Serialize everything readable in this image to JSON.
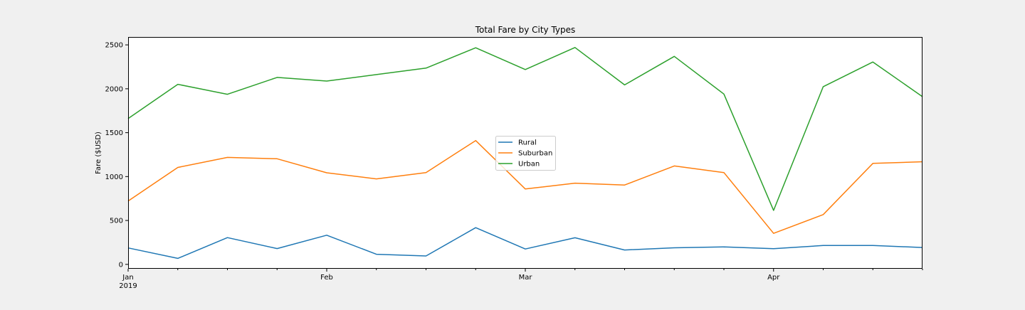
{
  "chart_data": {
    "type": "line",
    "title": "Total Fare by City Types",
    "xlabel": "",
    "ylabel": "Fare ($USD)",
    "x": [
      "2019-01-06",
      "2019-01-13",
      "2019-01-20",
      "2019-01-27",
      "2019-02-03",
      "2019-02-10",
      "2019-02-17",
      "2019-02-24",
      "2019-03-03",
      "2019-03-10",
      "2019-03-17",
      "2019-03-24",
      "2019-03-31",
      "2019-04-07",
      "2019-04-14",
      "2019-04-21",
      "2019-04-28"
    ],
    "xlim": [
      "2019-01-06",
      "2019-04-28"
    ],
    "ylim": [
      -50,
      2590
    ],
    "yticks": [
      0,
      500,
      1000,
      1500,
      2000,
      2500
    ],
    "xticks": [
      {
        "date": "2019-01-06",
        "label": "Jan",
        "sublabel": "2019",
        "major": true
      },
      {
        "date": "2019-01-13",
        "label": "",
        "sublabel": "",
        "major": false
      },
      {
        "date": "2019-01-20",
        "label": "",
        "sublabel": "",
        "major": false
      },
      {
        "date": "2019-01-27",
        "label": "",
        "sublabel": "",
        "major": false
      },
      {
        "date": "2019-02-03",
        "label": "Feb",
        "sublabel": "",
        "major": true
      },
      {
        "date": "2019-02-10",
        "label": "",
        "sublabel": "",
        "major": false
      },
      {
        "date": "2019-02-17",
        "label": "",
        "sublabel": "",
        "major": false
      },
      {
        "date": "2019-02-24",
        "label": "",
        "sublabel": "",
        "major": false
      },
      {
        "date": "2019-03-03",
        "label": "Mar",
        "sublabel": "",
        "major": true
      },
      {
        "date": "2019-03-10",
        "label": "",
        "sublabel": "",
        "major": false
      },
      {
        "date": "2019-03-17",
        "label": "",
        "sublabel": "",
        "major": false
      },
      {
        "date": "2019-03-24",
        "label": "",
        "sublabel": "",
        "major": false
      },
      {
        "date": "2019-03-31",
        "label": "",
        "sublabel": "",
        "major": false
      },
      {
        "date": "2019-04-07",
        "label": "Apr",
        "sublabel": "",
        "major": true
      },
      {
        "date": "2019-04-14",
        "label": "",
        "sublabel": "",
        "major": false
      },
      {
        "date": "2019-04-21",
        "label": "",
        "sublabel": "",
        "major": false
      },
      {
        "date": "2019-04-28",
        "label": "",
        "sublabel": "",
        "major": false
      }
    ],
    "series": [
      {
        "name": "Rural",
        "color": "#1f77b4",
        "values": [
          187,
          68,
          305,
          180,
          332,
          115,
          96,
          418,
          175,
          303,
          164,
          189,
          199,
          178,
          215,
          215,
          192
        ]
      },
      {
        "name": "Suburban",
        "color": "#ff7f0e",
        "values": [
          722,
          1104,
          1218,
          1203,
          1043,
          974,
          1046,
          1410,
          859,
          925,
          904,
          1121,
          1046,
          353,
          567,
          1150,
          1169
        ]
      },
      {
        "name": "Urban",
        "color": "#2ca02c",
        "values": [
          1661,
          2051,
          1937,
          2129,
          2088,
          2162,
          2235,
          2467,
          2219,
          2470,
          2044,
          2369,
          1940,
          615,
          2024,
          2305,
          1910
        ]
      }
    ],
    "grid": false,
    "legend_position": "center"
  }
}
